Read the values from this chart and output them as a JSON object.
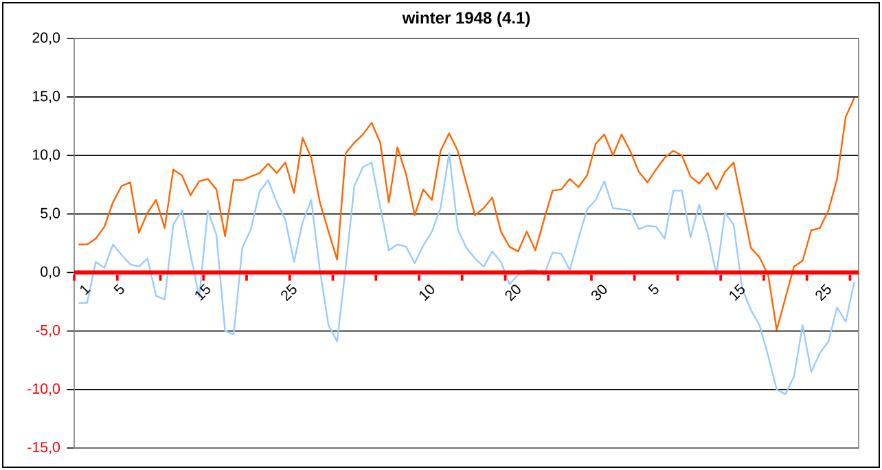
{
  "chart_data": {
    "type": "line",
    "title": "winter 1948 (4.1)",
    "categories": [
      "1",
      null,
      null,
      null,
      "5",
      null,
      null,
      null,
      null,
      null,
      null,
      null,
      null,
      null,
      "15",
      null,
      null,
      null,
      null,
      null,
      null,
      null,
      null,
      null,
      "25",
      null,
      null,
      null,
      null,
      null,
      null,
      null,
      null,
      null,
      null,
      null,
      null,
      null,
      null,
      null,
      "10",
      null,
      null,
      null,
      null,
      null,
      null,
      null,
      null,
      null,
      "20",
      null,
      null,
      null,
      null,
      null,
      null,
      null,
      null,
      null,
      "30",
      null,
      null,
      null,
      null,
      null,
      "5",
      null,
      null,
      null,
      null,
      null,
      null,
      null,
      null,
      null,
      "15",
      null,
      null,
      null,
      null,
      null,
      null,
      null,
      null,
      null,
      "25",
      null,
      null,
      null,
      null
    ],
    "series": [
      {
        "color": "#ff6600",
        "values": [
          2.4,
          2.4,
          2.9,
          3.9,
          6.0,
          7.4,
          7.7,
          3.4,
          5.1,
          6.2,
          3.8,
          8.8,
          8.3,
          6.6,
          7.8,
          8.0,
          7.1,
          3.1,
          7.9,
          7.9,
          8.2,
          8.5,
          9.3,
          8.5,
          9.4,
          6.8,
          11.5,
          9.8,
          6.0,
          3.5,
          1.1,
          10.2,
          11.1,
          11.8,
          12.8,
          11.1,
          6.0,
          10.7,
          8.4,
          4.9,
          7.1,
          6.2,
          10.4,
          11.9,
          10.4,
          7.6,
          4.9,
          5.5,
          6.4,
          3.5,
          2.2,
          1.8,
          3.5,
          1.9,
          4.5,
          7.0,
          7.1,
          8.0,
          7.3,
          8.3,
          11.0,
          11.8,
          10.0,
          11.8,
          10.4,
          8.6,
          7.7,
          8.8,
          9.8,
          10.4,
          10.0,
          8.2,
          7.6,
          8.5,
          7.1,
          8.6,
          9.4,
          5.8,
          2.1,
          1.3,
          -0.2,
          -4.9,
          -2.2,
          0.5,
          1.0,
          3.6,
          3.8,
          5.3,
          8.0,
          13.3,
          14.9
        ]
      },
      {
        "color": "#99ccff",
        "values": [
          -2.6,
          -2.6,
          0.9,
          0.4,
          2.4,
          1.5,
          0.7,
          0.5,
          1.2,
          -2.0,
          -2.3,
          4.1,
          5.3,
          1.5,
          -2.1,
          5.3,
          3.2,
          -5.0,
          -5.3,
          2.1,
          3.7,
          6.9,
          7.9,
          6.0,
          4.5,
          0.9,
          4.3,
          6.2,
          0.2,
          -4.5,
          -5.9,
          0.5,
          7.4,
          9.0,
          9.4,
          5.6,
          1.9,
          2.4,
          2.2,
          0.8,
          2.3,
          3.5,
          5.5,
          10.2,
          3.7,
          2.1,
          1.2,
          0.5,
          1.8,
          0.9,
          -1.0,
          -0.2,
          0.2,
          0.2,
          -0.2,
          1.7,
          1.6,
          0.2,
          2.9,
          5.4,
          6.2,
          7.8,
          5.5,
          5.4,
          5.3,
          3.7,
          4.0,
          3.9,
          2.9,
          7.0,
          7.0,
          3.0,
          5.8,
          3.3,
          -0.2,
          5.1,
          4.1,
          -1.4,
          -3.2,
          -4.5,
          -7.1,
          -10.0,
          -10.4,
          -8.9,
          -4.5,
          -8.5,
          -6.9,
          -5.9,
          -3.0,
          -4.2,
          -0.8
        ]
      }
    ],
    "ylim": [
      -15,
      20
    ],
    "yticks": [
      {
        "value": -15,
        "label": "-15,0"
      },
      {
        "value": -10,
        "label": "-10,0"
      },
      {
        "value": -5,
        "label": "-5,0"
      },
      {
        "value": 0,
        "label": "0,0"
      },
      {
        "value": 5,
        "label": "5,0"
      },
      {
        "value": 10,
        "label": "10,0"
      },
      {
        "value": 15,
        "label": "15,0"
      },
      {
        "value": 20,
        "label": "20,0"
      }
    ],
    "grid": "y"
  }
}
